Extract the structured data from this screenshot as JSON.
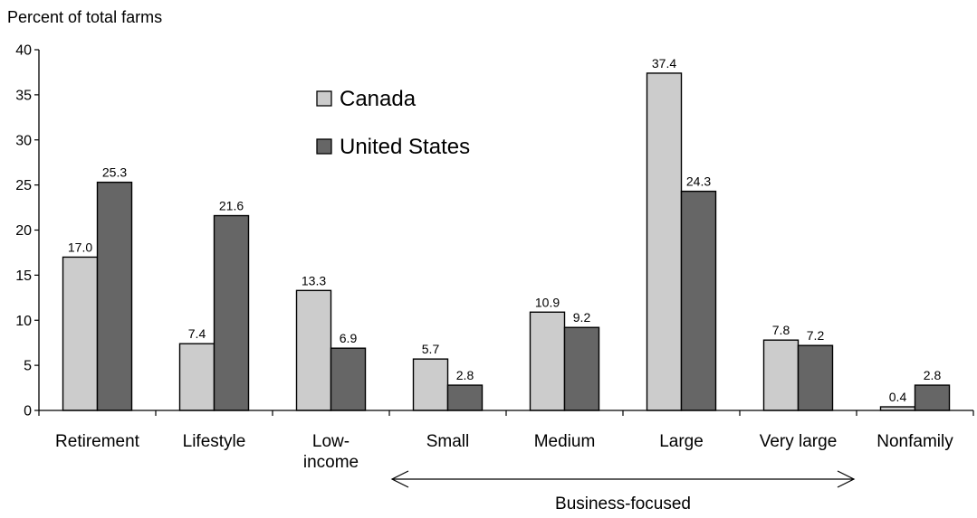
{
  "chart_data": {
    "type": "bar",
    "ylabel": "Percent of total farms",
    "ylim": [
      0,
      40
    ],
    "yticks": [
      "0",
      "5",
      "10",
      "15",
      "20",
      "25",
      "30",
      "35",
      "40"
    ],
    "categories": [
      [
        "Retirement"
      ],
      [
        "Lifestyle"
      ],
      [
        "Low-",
        "income"
      ],
      [
        "Small"
      ],
      [
        "Medium"
      ],
      [
        "Large"
      ],
      [
        "Very large"
      ],
      [
        "Nonfamily"
      ]
    ],
    "series": [
      {
        "name": "Canada",
        "color": "#cccccc",
        "values": [
          17.0,
          7.4,
          13.3,
          5.7,
          10.9,
          37.4,
          7.8,
          0.4
        ],
        "labels": [
          "17.0",
          "7.4",
          "13.3",
          "5.7",
          "10.9",
          "37.4",
          "7.8",
          "0.4"
        ]
      },
      {
        "name": "United States",
        "color": "#666666",
        "values": [
          25.3,
          21.6,
          6.9,
          2.8,
          9.2,
          24.3,
          7.2,
          2.8
        ],
        "labels": [
          "25.3",
          "21.6",
          "6.9",
          "2.8",
          "9.2",
          "24.3",
          "7.2",
          "2.8"
        ]
      }
    ],
    "annotation": {
      "text": "Business-focused",
      "span_categories": [
        "Small",
        "Very large"
      ]
    },
    "legend_position": "top-center",
    "grid": false
  }
}
